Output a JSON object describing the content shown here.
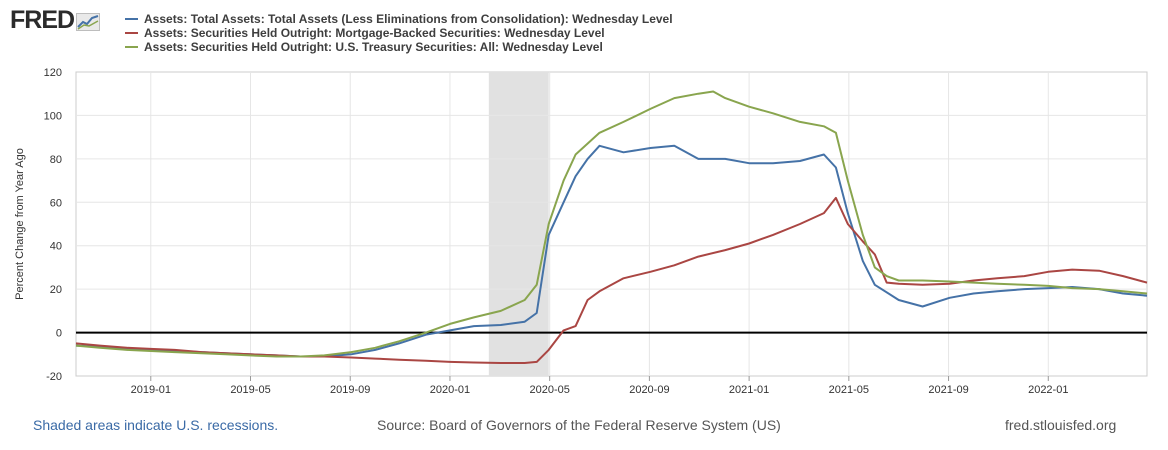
{
  "brand": {
    "name": "FRED",
    "logo_icon": "fred-line-graph-icon"
  },
  "legend": [
    {
      "label": "Assets: Total Assets: Total Assets (Less Eliminations from Consolidation): Wednesday Level",
      "color": "#4572a7"
    },
    {
      "label": "Assets: Securities Held Outright: Mortgage-Backed Securities: Wednesday Level",
      "color": "#aa4643"
    },
    {
      "label": "Assets: Securities Held Outright: U.S. Treasury Securities: All: Wednesday Level",
      "color": "#89a54e"
    }
  ],
  "footer": {
    "recession_note": "Shaded areas indicate U.S. recessions.",
    "source": "Source: Board of Governors of the Federal Reserve System (US)",
    "site": "fred.stlouisfed.org"
  },
  "chart_data": {
    "type": "line",
    "title": "",
    "xlabel": "",
    "ylabel": "Percent Change from Year Ago",
    "x_range": [
      "2018-10",
      "2022-04"
    ],
    "ylim": [
      -20,
      120
    ],
    "y_ticks": [
      120,
      100,
      80,
      60,
      40,
      20,
      0,
      -20
    ],
    "x_ticks": [
      "2019-01",
      "2019-05",
      "2019-09",
      "2020-01",
      "2020-05",
      "2020-09",
      "2021-01",
      "2021-05",
      "2021-09",
      "2022-01"
    ],
    "grid": true,
    "zero_line": true,
    "recession": {
      "start": 2020.13,
      "end": 2020.33
    },
    "series": [
      {
        "name": "Assets: Total Assets: Total Assets (Less Eliminations from Consolidation): Wednesday Level",
        "color": "#4572a7",
        "points": [
          [
            2018.75,
            -6
          ],
          [
            2018.83,
            -6.5
          ],
          [
            2018.92,
            -7.5
          ],
          [
            2019.0,
            -8
          ],
          [
            2019.08,
            -8.5
          ],
          [
            2019.17,
            -9
          ],
          [
            2019.25,
            -9.5
          ],
          [
            2019.33,
            -10
          ],
          [
            2019.42,
            -10.5
          ],
          [
            2019.5,
            -11
          ],
          [
            2019.58,
            -11
          ],
          [
            2019.67,
            -10
          ],
          [
            2019.75,
            -8
          ],
          [
            2019.83,
            -5
          ],
          [
            2019.92,
            -1
          ],
          [
            2020.0,
            1
          ],
          [
            2020.08,
            3
          ],
          [
            2020.17,
            3.5
          ],
          [
            2020.25,
            5
          ],
          [
            2020.29,
            9
          ],
          [
            2020.33,
            45
          ],
          [
            2020.38,
            60
          ],
          [
            2020.42,
            72
          ],
          [
            2020.46,
            80
          ],
          [
            2020.5,
            86
          ],
          [
            2020.58,
            83
          ],
          [
            2020.67,
            85
          ],
          [
            2020.75,
            86
          ],
          [
            2020.83,
            80
          ],
          [
            2020.92,
            80
          ],
          [
            2021.0,
            78
          ],
          [
            2021.08,
            78
          ],
          [
            2021.17,
            79
          ],
          [
            2021.25,
            82
          ],
          [
            2021.29,
            76
          ],
          [
            2021.33,
            55
          ],
          [
            2021.38,
            33
          ],
          [
            2021.42,
            22
          ],
          [
            2021.5,
            15
          ],
          [
            2021.58,
            12
          ],
          [
            2021.67,
            16
          ],
          [
            2021.75,
            18
          ],
          [
            2021.83,
            19
          ],
          [
            2021.92,
            20
          ],
          [
            2022.0,
            20.5
          ],
          [
            2022.08,
            21
          ],
          [
            2022.17,
            20
          ],
          [
            2022.25,
            18
          ],
          [
            2022.33,
            17
          ]
        ]
      },
      {
        "name": "Assets: Securities Held Outright: Mortgage-Backed Securities: Wednesday Level",
        "color": "#aa4643",
        "points": [
          [
            2018.75,
            -5
          ],
          [
            2018.83,
            -6
          ],
          [
            2018.92,
            -7
          ],
          [
            2019.0,
            -7.5
          ],
          [
            2019.08,
            -8
          ],
          [
            2019.17,
            -9
          ],
          [
            2019.25,
            -9.5
          ],
          [
            2019.33,
            -10
          ],
          [
            2019.42,
            -10.5
          ],
          [
            2019.5,
            -11
          ],
          [
            2019.58,
            -11
          ],
          [
            2019.67,
            -11.5
          ],
          [
            2019.75,
            -12
          ],
          [
            2019.83,
            -12.5
          ],
          [
            2019.92,
            -13
          ],
          [
            2020.0,
            -13.5
          ],
          [
            2020.08,
            -13.8
          ],
          [
            2020.17,
            -14
          ],
          [
            2020.25,
            -14
          ],
          [
            2020.29,
            -13.5
          ],
          [
            2020.33,
            -8
          ],
          [
            2020.38,
            1
          ],
          [
            2020.42,
            3
          ],
          [
            2020.46,
            15
          ],
          [
            2020.5,
            19
          ],
          [
            2020.58,
            25
          ],
          [
            2020.67,
            28
          ],
          [
            2020.75,
            31
          ],
          [
            2020.83,
            35
          ],
          [
            2020.92,
            38
          ],
          [
            2021.0,
            41
          ],
          [
            2021.08,
            45
          ],
          [
            2021.17,
            50
          ],
          [
            2021.25,
            55
          ],
          [
            2021.29,
            62
          ],
          [
            2021.33,
            50
          ],
          [
            2021.38,
            42
          ],
          [
            2021.42,
            36
          ],
          [
            2021.46,
            23
          ],
          [
            2021.5,
            22.5
          ],
          [
            2021.58,
            22
          ],
          [
            2021.67,
            22.5
          ],
          [
            2021.75,
            24
          ],
          [
            2021.83,
            25
          ],
          [
            2021.92,
            26
          ],
          [
            2022.0,
            28
          ],
          [
            2022.08,
            29
          ],
          [
            2022.17,
            28.5
          ],
          [
            2022.25,
            26
          ],
          [
            2022.33,
            23
          ]
        ]
      },
      {
        "name": "Assets: Securities Held Outright: U.S. Treasury Securities: All: Wednesday Level",
        "color": "#89a54e",
        "points": [
          [
            2018.75,
            -6
          ],
          [
            2018.83,
            -7
          ],
          [
            2018.92,
            -8
          ],
          [
            2019.0,
            -8.5
          ],
          [
            2019.08,
            -9
          ],
          [
            2019.17,
            -9.5
          ],
          [
            2019.25,
            -10
          ],
          [
            2019.33,
            -10.5
          ],
          [
            2019.42,
            -11
          ],
          [
            2019.5,
            -11
          ],
          [
            2019.58,
            -10.5
          ],
          [
            2019.67,
            -9
          ],
          [
            2019.75,
            -7
          ],
          [
            2019.83,
            -4
          ],
          [
            2019.92,
            0
          ],
          [
            2020.0,
            4
          ],
          [
            2020.08,
            7
          ],
          [
            2020.17,
            10
          ],
          [
            2020.25,
            15
          ],
          [
            2020.29,
            22
          ],
          [
            2020.33,
            50
          ],
          [
            2020.38,
            70
          ],
          [
            2020.42,
            82
          ],
          [
            2020.5,
            92
          ],
          [
            2020.58,
            97
          ],
          [
            2020.67,
            103
          ],
          [
            2020.75,
            108
          ],
          [
            2020.83,
            110
          ],
          [
            2020.88,
            111
          ],
          [
            2020.92,
            108
          ],
          [
            2021.0,
            104
          ],
          [
            2021.08,
            101
          ],
          [
            2021.17,
            97
          ],
          [
            2021.25,
            95
          ],
          [
            2021.29,
            92
          ],
          [
            2021.33,
            70
          ],
          [
            2021.38,
            45
          ],
          [
            2021.42,
            30
          ],
          [
            2021.46,
            26
          ],
          [
            2021.5,
            24
          ],
          [
            2021.58,
            24
          ],
          [
            2021.67,
            23.5
          ],
          [
            2021.75,
            23
          ],
          [
            2021.83,
            22.5
          ],
          [
            2021.92,
            22
          ],
          [
            2022.0,
            21.5
          ],
          [
            2022.08,
            20.5
          ],
          [
            2022.17,
            20
          ],
          [
            2022.25,
            19
          ],
          [
            2022.33,
            18
          ]
        ]
      }
    ]
  }
}
